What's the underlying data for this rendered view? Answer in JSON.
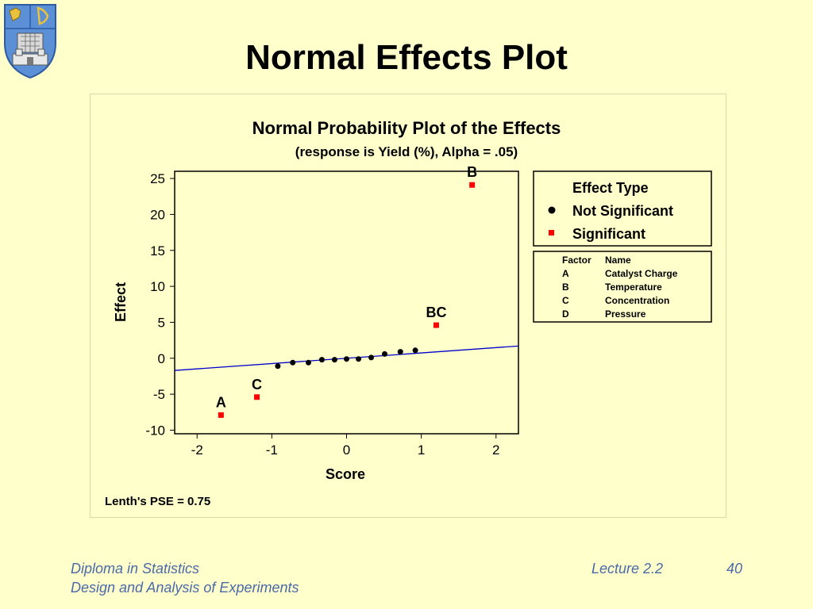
{
  "slide": {
    "title": "Normal Effects Plot",
    "footer": {
      "line1": "Diploma in Statistics",
      "line2": "Design and Analysis of Experiments",
      "lecture": "Lecture 2.2",
      "page": "40"
    }
  },
  "colors": {
    "significant": "#ff0000",
    "not_significant": "#000000",
    "line": "#0000cc",
    "background": "#ffffcc"
  },
  "chart_data": {
    "type": "scatter",
    "title": "Normal Probability Plot of the Effects",
    "subtitle": "(response is Yield (%), Alpha = .05)",
    "xlabel": "Score",
    "ylabel": "Effect",
    "xlim": [
      -2.3,
      2.3
    ],
    "ylim": [
      -10.5,
      26
    ],
    "xticks": [
      -2,
      -1,
      0,
      1,
      2
    ],
    "yticks": [
      -10,
      -5,
      0,
      5,
      10,
      15,
      20,
      25
    ],
    "reference_line": {
      "x": [
        -2.3,
        2.3
      ],
      "y": [
        -1.7,
        1.7
      ]
    },
    "series": [
      {
        "name": "Not Significant",
        "marker": "circle",
        "points": [
          {
            "x": -0.92,
            "y": -1.1
          },
          {
            "x": -0.72,
            "y": -0.6
          },
          {
            "x": -0.51,
            "y": -0.6
          },
          {
            "x": -0.33,
            "y": -0.2
          },
          {
            "x": -0.16,
            "y": -0.2
          },
          {
            "x": 0.0,
            "y": -0.1
          },
          {
            "x": 0.16,
            "y": -0.1
          },
          {
            "x": 0.33,
            "y": 0.1
          },
          {
            "x": 0.51,
            "y": 0.6
          },
          {
            "x": 0.72,
            "y": 0.9
          },
          {
            "x": 0.92,
            "y": 1.1
          }
        ]
      },
      {
        "name": "Significant",
        "marker": "square",
        "points": [
          {
            "x": -1.68,
            "y": -7.9,
            "label": "A"
          },
          {
            "x": -1.2,
            "y": -5.4,
            "label": "C"
          },
          {
            "x": 1.2,
            "y": 4.6,
            "label": "BC"
          },
          {
            "x": 1.68,
            "y": 24.1,
            "label": "B"
          }
        ]
      }
    ],
    "legend": {
      "title": "Effect Type",
      "placement": "right"
    },
    "factor_table": {
      "headers": [
        "Factor",
        "Name"
      ],
      "rows": [
        [
          "A",
          "Catalyst Charge"
        ],
        [
          "B",
          "Temperature"
        ],
        [
          "C",
          "Concentration"
        ],
        [
          "D",
          "Pressure"
        ]
      ]
    },
    "annotation": "Lenth's PSE = 0.75"
  }
}
